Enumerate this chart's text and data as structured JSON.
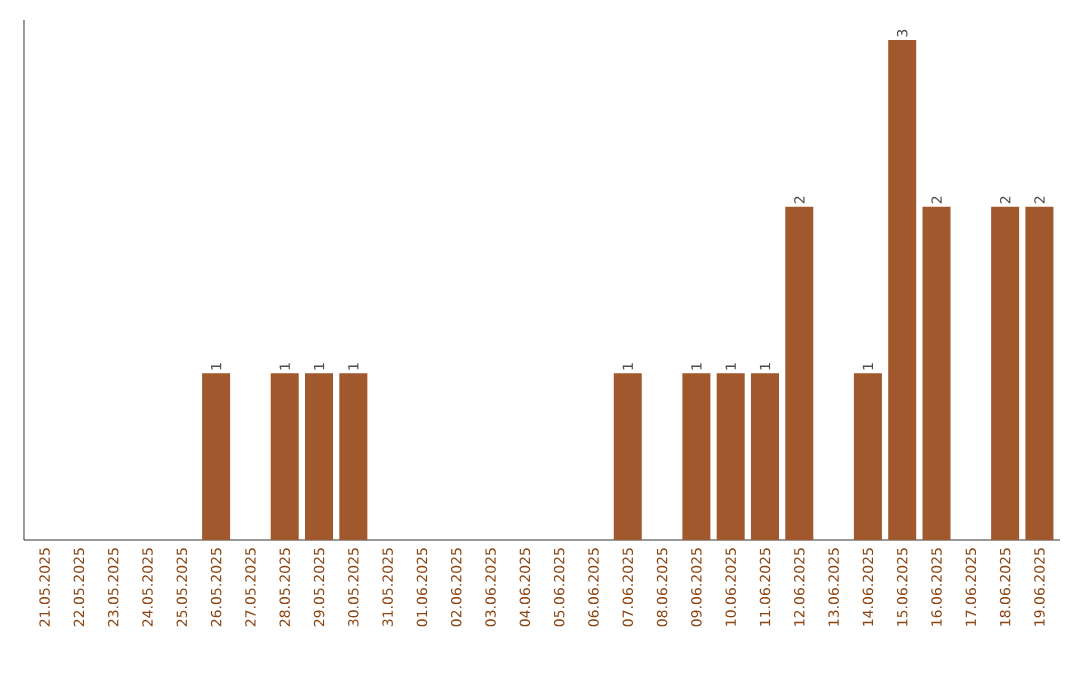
{
  "chart_data": {
    "type": "bar",
    "categories": [
      "21.05.2025",
      "22.05.2025",
      "23.05.2025",
      "24.05.2025",
      "25.05.2025",
      "26.05.2025",
      "27.05.2025",
      "28.05.2025",
      "29.05.2025",
      "30.05.2025",
      "31.05.2025",
      "01.06.2025",
      "02.06.2025",
      "03.06.2025",
      "04.06.2025",
      "05.06.2025",
      "06.06.2025",
      "07.06.2025",
      "08.06.2025",
      "09.06.2025",
      "10.06.2025",
      "11.06.2025",
      "12.06.2025",
      "13.06.2025",
      "14.06.2025",
      "15.06.2025",
      "16.06.2025",
      "17.06.2025",
      "18.06.2025",
      "19.06.2025"
    ],
    "values": [
      0,
      0,
      0,
      0,
      0,
      1,
      0,
      1,
      1,
      1,
      0,
      0,
      0,
      0,
      0,
      0,
      0,
      1,
      0,
      1,
      1,
      1,
      2,
      0,
      1,
      3,
      2,
      0,
      2,
      2
    ],
    "value_labels": [
      null,
      null,
      null,
      null,
      null,
      "1",
      null,
      "1",
      "1",
      "1",
      null,
      null,
      null,
      null,
      null,
      null,
      null,
      "1",
      null,
      "1",
      "1",
      "1",
      "2",
      null,
      "1",
      "3",
      "2",
      null,
      "2",
      "2"
    ],
    "color": "#a0582c"
  }
}
